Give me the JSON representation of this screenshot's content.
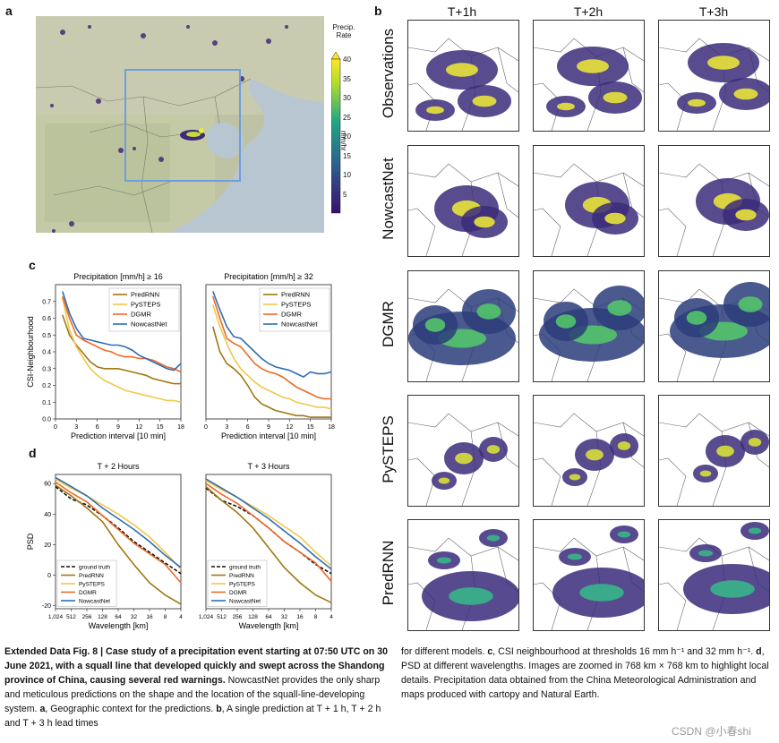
{
  "panel_a": {
    "letter": "a",
    "colorbar": {
      "title_line1": "Precip.",
      "title_line2": "Rate",
      "unit": "mm/hr",
      "ticks": [
        "40",
        "35",
        "30",
        "25",
        "20",
        "15",
        "10",
        "5"
      ]
    }
  },
  "panel_b": {
    "letter": "b",
    "columns": [
      "T+1h",
      "T+2h",
      "T+3h"
    ],
    "rows": [
      "Observations",
      "NowcastNet",
      "DGMR",
      "PySTEPS",
      "PredRNN"
    ]
  },
  "panel_c": {
    "letter": "c",
    "chart_data": [
      {
        "type": "line",
        "title": "Precipitation [mm/h]  ≥  16",
        "xlabel": "Prediction interval [10 min]",
        "ylabel": "CSI-Neighbourhood",
        "xticks": [
          "0",
          "3",
          "6",
          "9",
          "12",
          "15",
          "18"
        ],
        "yticks": [
          "0.0",
          "0.1",
          "0.2",
          "0.3",
          "0.4",
          "0.5",
          "0.6",
          "0.7"
        ],
        "xlim": [
          0,
          18
        ],
        "ylim": [
          0,
          0.8
        ],
        "x": [
          1,
          2,
          3,
          4,
          5,
          6,
          7,
          8,
          9,
          10,
          11,
          12,
          13,
          14,
          15,
          16,
          17,
          18
        ],
        "series": [
          {
            "name": "PredRNN",
            "color": "#a07811",
            "values": [
              0.62,
              0.5,
              0.44,
              0.39,
              0.34,
              0.31,
              0.3,
              0.3,
              0.3,
              0.29,
              0.28,
              0.27,
              0.26,
              0.24,
              0.23,
              0.22,
              0.21,
              0.21
            ]
          },
          {
            "name": "PySTEPS",
            "color": "#f0c84a",
            "values": [
              0.72,
              0.53,
              0.43,
              0.36,
              0.3,
              0.26,
              0.23,
              0.21,
              0.19,
              0.17,
              0.16,
              0.15,
              0.14,
              0.13,
              0.12,
              0.11,
              0.11,
              0.1
            ]
          },
          {
            "name": "DGMR",
            "color": "#ec6a28",
            "values": [
              0.73,
              0.6,
              0.5,
              0.47,
              0.45,
              0.43,
              0.41,
              0.4,
              0.38,
              0.37,
              0.37,
              0.36,
              0.36,
              0.35,
              0.33,
              0.31,
              0.3,
              0.28
            ]
          },
          {
            "name": "NowcastNet",
            "color": "#2e6db4",
            "values": [
              0.76,
              0.63,
              0.54,
              0.48,
              0.47,
              0.46,
              0.45,
              0.44,
              0.44,
              0.43,
              0.41,
              0.38,
              0.36,
              0.34,
              0.32,
              0.3,
              0.29,
              0.33
            ]
          }
        ]
      },
      {
        "type": "line",
        "title": "Precipitation [mm/h]  ≥  32",
        "xlabel": "Prediction interval [10 min]",
        "ylabel": "",
        "xticks": [
          "0",
          "3",
          "6",
          "9",
          "12",
          "15",
          "18"
        ],
        "yticks": [],
        "xlim": [
          0,
          18
        ],
        "ylim": [
          0,
          0.8
        ],
        "x": [
          1,
          2,
          3,
          4,
          5,
          6,
          7,
          8,
          9,
          10,
          11,
          12,
          13,
          14,
          15,
          16,
          17,
          18
        ],
        "series": [
          {
            "name": "PredRNN",
            "color": "#a07811",
            "values": [
              0.55,
              0.4,
              0.33,
              0.3,
              0.26,
              0.2,
              0.13,
              0.09,
              0.07,
              0.05,
              0.04,
              0.03,
              0.02,
              0.02,
              0.01,
              0.01,
              0.01,
              0.01
            ]
          },
          {
            "name": "PySTEPS",
            "color": "#f0c84a",
            "values": [
              0.68,
              0.55,
              0.45,
              0.36,
              0.3,
              0.26,
              0.22,
              0.19,
              0.17,
              0.15,
              0.13,
              0.12,
              0.1,
              0.09,
              0.08,
              0.07,
              0.07,
              0.06
            ]
          },
          {
            "name": "DGMR",
            "color": "#ec6a28",
            "values": [
              0.73,
              0.6,
              0.48,
              0.45,
              0.43,
              0.38,
              0.33,
              0.3,
              0.28,
              0.27,
              0.25,
              0.22,
              0.19,
              0.17,
              0.15,
              0.13,
              0.12,
              0.12
            ]
          },
          {
            "name": "NowcastNet",
            "color": "#2e6db4",
            "values": [
              0.76,
              0.65,
              0.55,
              0.49,
              0.48,
              0.44,
              0.4,
              0.36,
              0.33,
              0.31,
              0.3,
              0.29,
              0.27,
              0.25,
              0.28,
              0.27,
              0.27,
              0.28
            ]
          }
        ]
      }
    ]
  },
  "panel_d": {
    "letter": "d",
    "chart_data": [
      {
        "type": "line",
        "title": "T + 2 Hours",
        "xlabel": "Wavelength [km]",
        "ylabel": "PSD",
        "xticks": [
          "1,024",
          "512",
          "256",
          "128",
          "64",
          "32",
          "16",
          "8",
          "4"
        ],
        "yticks": [
          "60",
          "40",
          "20",
          "0",
          "-20"
        ],
        "ylim": [
          -22,
          66
        ],
        "x": [
          0,
          1,
          2,
          3,
          4,
          5,
          6,
          7,
          8
        ],
        "series": [
          {
            "name": "ground truth",
            "color": "#111111",
            "dashed": true,
            "values": [
              58,
              50,
              46,
              39,
              31,
              22,
              15,
              8,
              1
            ]
          },
          {
            "name": "PredRNN",
            "color": "#a07811",
            "values": [
              59,
              52,
              44,
              35,
              20,
              7,
              -5,
              -13,
              -19
            ]
          },
          {
            "name": "PySTEPS",
            "color": "#f0c84a",
            "values": [
              63,
              57,
              52,
              46,
              40,
              33,
              25,
              15,
              4
            ]
          },
          {
            "name": "DGMR",
            "color": "#ec6a28",
            "values": [
              61,
              54,
              48,
              39,
              30,
              21,
              14,
              7,
              -5
            ]
          },
          {
            "name": "NowcastNet",
            "color": "#2e6db4",
            "values": [
              64,
              58,
              52,
              44,
              37,
              30,
              22,
              13,
              5
            ]
          }
        ]
      },
      {
        "type": "line",
        "title": "T + 3 Hours",
        "xlabel": "Wavelength [km]",
        "ylabel": "",
        "xticks": [
          "1,024",
          "512",
          "256",
          "128",
          "64",
          "32",
          "16",
          "8",
          "4"
        ],
        "yticks": [],
        "ylim": [
          -22,
          66
        ],
        "x": [
          0,
          1,
          2,
          3,
          4,
          5,
          6,
          7,
          8
        ],
        "series": [
          {
            "name": "ground truth",
            "color": "#111111",
            "dashed": true,
            "values": [
              57,
              49,
              45,
              39,
              31,
              22,
              15,
              7,
              1
            ]
          },
          {
            "name": "PredRNN",
            "color": "#a07811",
            "values": [
              58,
              49,
              41,
              31,
              18,
              5,
              -5,
              -13,
              -18
            ]
          },
          {
            "name": "PySTEPS",
            "color": "#f0c84a",
            "values": [
              62,
              56,
              51,
              45,
              39,
              32,
              25,
              15,
              6
            ]
          },
          {
            "name": "DGMR",
            "color": "#ec6a28",
            "values": [
              60,
              53,
              47,
              39,
              31,
              22,
              15,
              8,
              -4
            ]
          },
          {
            "name": "NowcastNet",
            "color": "#2e6db4",
            "values": [
              63,
              57,
              51,
              44,
              37,
              29,
              21,
              12,
              4
            ]
          }
        ]
      }
    ]
  },
  "caption": {
    "left_bold": "Extended Data Fig. 8 | Case study of a precipitation event starting at 07:50 UTC on 30 June 2021, with a squall line that developed quickly and swept across the Shandong province of China, causing several red warnings.",
    "left_line1": "NowcastNet provides the only sharp and meticulous predictions on the shape",
    "left_line2": "and the location of the squall-line-developing system.",
    "left_a_bold": "a",
    "left_line3": ", Geographic context",
    "left_line4": "for the predictions.",
    "left_b_bold": "b",
    "left_line5": ", A single prediction at T + 1 h, T + 2 h and T + 3 h lead times",
    "right_line1": "for different models.",
    "right_c_bold": "c",
    "right_line1b": ", CSI neighbourhood at thresholds 16 mm h⁻¹ and",
    "right_line2a": "32 mm h⁻¹.",
    "right_d_bold": "d",
    "right_line2b": ", PSD at different wavelengths. Images are zoomed in 768 km ×",
    "right_line3": "768 km to highlight local details. Precipitation data obtained from the China",
    "right_line4": "Meteorological Administration and maps produced with cartopy and Natural",
    "right_line5": "Earth."
  },
  "watermark": "CSDN @小春shi"
}
